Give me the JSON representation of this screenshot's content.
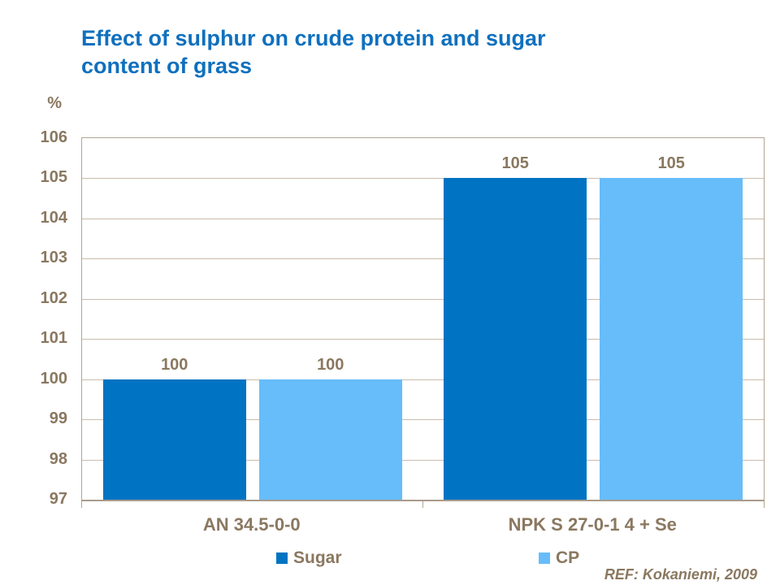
{
  "title": {
    "line1": "Effect of sulphur on crude protein and sugar",
    "line2": "content of grass"
  },
  "chart_data": {
    "type": "bar",
    "title": "Effect of sulphur on crude protein and sugar content of grass",
    "categories": [
      "AN 34.5-0-0",
      "NPK S 27-0-1 4 + Se"
    ],
    "series": [
      {
        "name": "Sugar",
        "color": "#0073C2",
        "values": [
          100,
          105
        ]
      },
      {
        "name": "CP",
        "color": "#66BDFA",
        "values": [
          100,
          105
        ]
      }
    ],
    "value_labels": [
      [
        "100",
        "105"
      ],
      [
        "100",
        "105"
      ]
    ],
    "ylabel": "%",
    "ylim": [
      97,
      106
    ],
    "yticks": [
      97,
      98,
      99,
      100,
      101,
      102,
      103,
      104,
      105,
      106
    ],
    "grid": true,
    "legend_position": "bottom"
  },
  "footer": {
    "ref": "REF: Kokaniemi, 2009"
  },
  "colors": {
    "title_text": "#0F70BE",
    "axis_text": "#8A7860",
    "gridline": "#C9BCAD",
    "plot_border": "#B2A494",
    "background": "#FFFFFF"
  }
}
